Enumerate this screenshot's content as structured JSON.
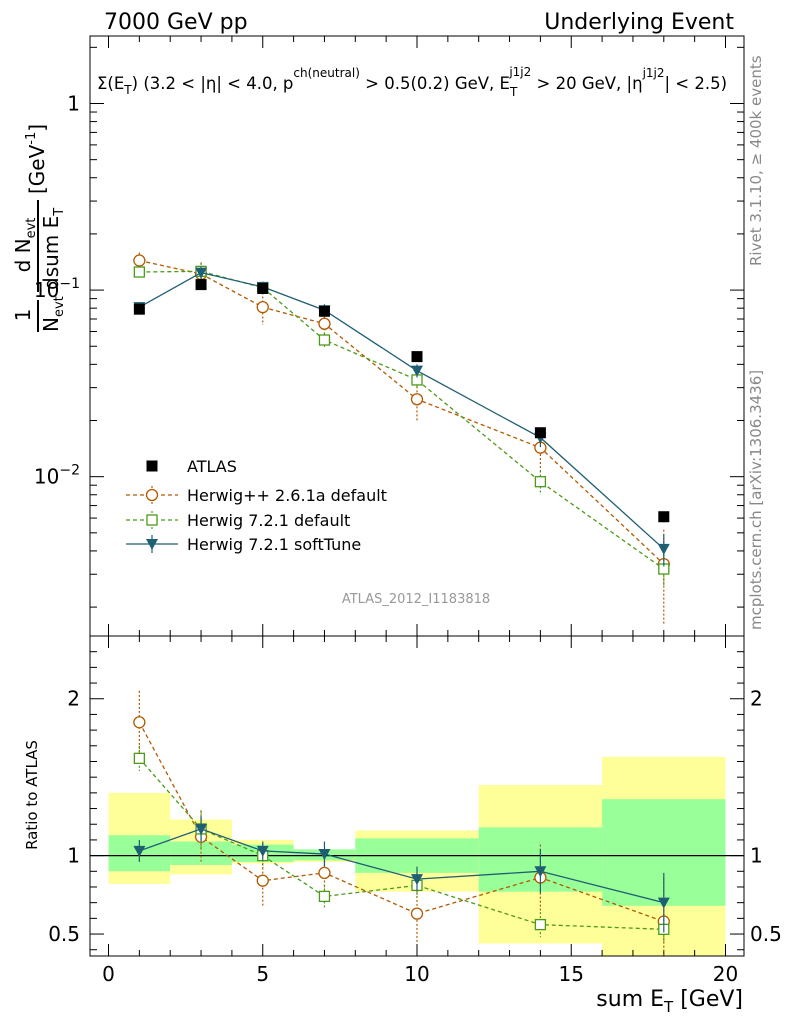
{
  "header": {
    "left": "7000 GeV pp",
    "right": "Underlying Event"
  },
  "subtitle": {
    "main": "Σ(E",
    "sub1": "T",
    "mid1": ") (3.2 < |η| < 4.0, p",
    "sup1": "ch(neutral)",
    "mid2": " > 0.5(0.2) GeV, E",
    "sub2": "T",
    "sup2": "j1j2",
    "mid3": " > 20 GeV, |η",
    "sup3": "j1j2",
    "end": "| < 2.5)"
  },
  "side_labels": {
    "rivet": "Rivet 3.1.10, ≥ 400k events",
    "mcplots": "mcplots.cern.ch [arXiv:1306.3436]"
  },
  "watermark": "ATLAS_2012_I1183818",
  "ylabel": {
    "frac1_num": "1",
    "frac1_den": "N",
    "frac1_den_sub": "evt",
    "frac2_num": "d N",
    "frac2_num_sub": "evt",
    "frac2_den": "dsum E",
    "frac2_den_sub": "T",
    "unit": "[GeV",
    "unit_sup": "-1",
    "unit_end": "]"
  },
  "ratio_ylabel": "Ratio to ATLAS",
  "xlabel": {
    "main": "sum E",
    "sub": "T",
    "unit": " [GeV]"
  },
  "chart_data": {
    "type": "line",
    "x_range": [
      -0.6,
      20.6
    ],
    "y_scale": "log",
    "y_range": [
      0.0014,
      2.3
    ],
    "ratio_range": [
      0.36,
      2.4
    ],
    "x_ticks": [
      0,
      5,
      10,
      15,
      20
    ],
    "y_ticks": [
      {
        "v": 1,
        "label": "1"
      },
      {
        "v": 0.1,
        "label": "10",
        "sup": "−1"
      },
      {
        "v": 0.01,
        "label": "10",
        "sup": "−2"
      }
    ],
    "ratio_ticks": [
      {
        "v": 2,
        "label": "2"
      },
      {
        "v": 1,
        "label": "1"
      },
      {
        "v": 0.5,
        "label": "0.5"
      }
    ],
    "bins": [
      [
        0,
        2
      ],
      [
        2,
        4
      ],
      [
        4,
        6
      ],
      [
        6,
        8
      ],
      [
        8,
        12
      ],
      [
        12,
        16
      ],
      [
        16,
        20
      ]
    ],
    "data_bands": {
      "green": [
        [
          0.9,
          1.13
        ],
        [
          0.94,
          1.09
        ],
        [
          0.96,
          1.07
        ],
        [
          0.97,
          1.04
        ],
        [
          0.89,
          1.11
        ],
        [
          0.77,
          1.18
        ],
        [
          0.68,
          1.36
        ]
      ],
      "yellow": [
        [
          0.82,
          1.4
        ],
        [
          0.88,
          1.23
        ],
        [
          0.95,
          1.1
        ],
        [
          0.96,
          1.03
        ],
        [
          0.77,
          1.16
        ],
        [
          0.44,
          1.45
        ],
        [
          0.3,
          1.63
        ]
      ]
    },
    "series": [
      {
        "name": "ATLAS",
        "style": "data",
        "color": "#000000",
        "x": [
          1,
          3,
          5,
          7,
          10,
          14,
          18
        ],
        "y": [
          0.079,
          0.107,
          0.102,
          0.077,
          0.044,
          0.0172,
          0.0061
        ],
        "err": [
          0.004,
          0.005,
          0.005,
          0.004,
          0.002,
          0.001,
          0.0004
        ]
      },
      {
        "name": "Herwig++ 2.6.1a default",
        "style": "dashed-circle",
        "color": "#b35900",
        "x": [
          1,
          3,
          5,
          7,
          10,
          14,
          18
        ],
        "y": [
          0.144,
          0.122,
          0.081,
          0.066,
          0.026,
          0.0143,
          0.0034
        ],
        "err": [
          0.015,
          0.018,
          0.016,
          0.01,
          0.006,
          0.0035,
          0.0018
        ],
        "ratio": [
          1.85,
          1.12,
          0.84,
          0.89,
          0.63,
          0.86,
          0.58
        ],
        "ratio_err": [
          0.2,
          0.16,
          0.16,
          0.13,
          0.19,
          0.21,
          0.28
        ]
      },
      {
        "name": "Herwig 7.2.1 default",
        "style": "dashed-square",
        "color": "#4c9a1a",
        "x": [
          1,
          3,
          5,
          7,
          10,
          14,
          18
        ],
        "y": [
          0.125,
          0.126,
          0.103,
          0.054,
          0.033,
          0.0094,
          0.0032
        ],
        "err": [
          0.007,
          0.015,
          0.008,
          0.005,
          0.003,
          0.0014,
          0.0006
        ],
        "ratio": [
          1.62,
          1.17,
          1.0,
          0.74,
          0.81,
          0.56,
          0.53
        ],
        "ratio_err": [
          0.08,
          0.12,
          0.08,
          0.07,
          0.08,
          0.08,
          0.09
        ]
      },
      {
        "name": "Herwig 7.2.1 softTune",
        "style": "solid-triangle",
        "color": "#1f5f73",
        "x": [
          1,
          3,
          5,
          7,
          10,
          14,
          18
        ],
        "y": [
          0.081,
          0.124,
          0.104,
          0.078,
          0.037,
          0.0162,
          0.0041
        ],
        "err": [
          0.004,
          0.01,
          0.006,
          0.006,
          0.003,
          0.0018,
          0.0008
        ],
        "ratio": [
          1.03,
          1.17,
          1.03,
          1.01,
          0.85,
          0.9,
          0.7
        ],
        "ratio_err": [
          0.07,
          0.08,
          0.06,
          0.08,
          0.08,
          0.14,
          0.19
        ]
      }
    ]
  }
}
